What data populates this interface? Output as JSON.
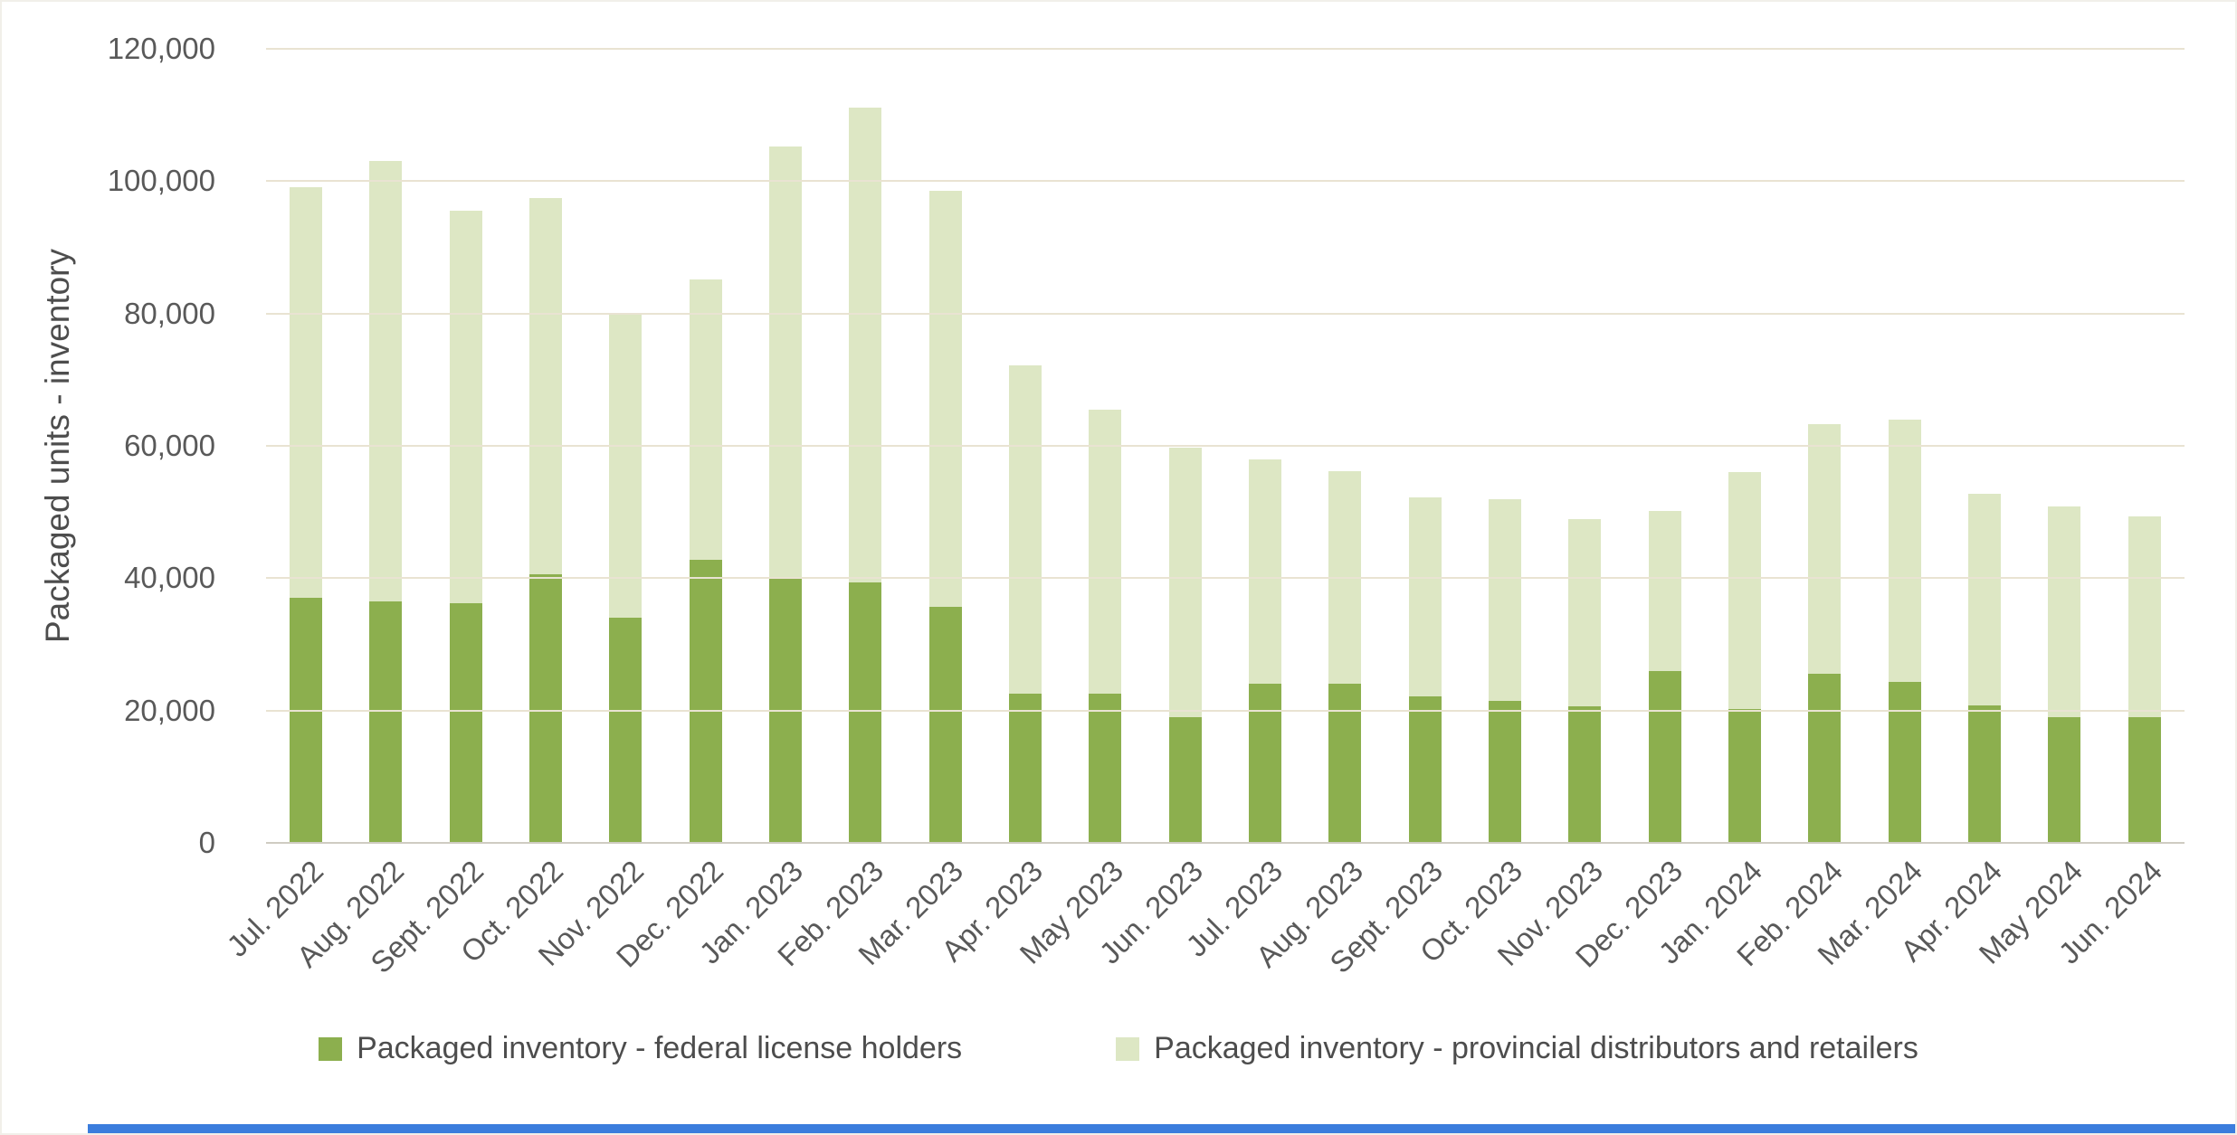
{
  "page": {
    "background": "#ffffff",
    "bottom_strip_color": "#3b7ddd"
  },
  "chart_data": {
    "type": "bar",
    "stacked": true,
    "title": "",
    "xlabel": "",
    "ylabel": "Packaged units - inventory",
    "ylim": [
      0,
      120000
    ],
    "ytick_step": 20000,
    "ytick_labels": [
      "0",
      "20,000",
      "40,000",
      "60,000",
      "80,000",
      "100,000",
      "120,000"
    ],
    "grid": true,
    "grid_color": "#e9e3d2",
    "axis_line_color": "#cfccc2",
    "tick_text_color": "#595959",
    "legend_position": "bottom",
    "categories": [
      "Jul. 2022",
      "Aug. 2022",
      "Sept. 2022",
      "Oct. 2022",
      "Nov. 2022",
      "Dec. 2022",
      "Jan. 2023",
      "Feb. 2023",
      "Mar. 2023",
      "Apr. 2023",
      "May 2023",
      "Jun. 2023",
      "Jul. 2023",
      "Aug. 2023",
      "Sept. 2023",
      "Oct. 2023",
      "Nov. 2023",
      "Dec. 2023",
      "Jan. 2024",
      "Feb. 2024",
      "Mar. 2024",
      "Apr. 2024",
      "May 2024",
      "Jun. 2024"
    ],
    "series": [
      {
        "name": "Packaged inventory - federal license holders",
        "color": "#8caf4e",
        "values": [
          37000,
          36500,
          36200,
          40600,
          34000,
          42800,
          40000,
          39400,
          35700,
          22500,
          22500,
          19000,
          24000,
          24000,
          22200,
          21400,
          20700,
          26000,
          20200,
          25500,
          24300,
          20800,
          19000,
          19000
        ]
      },
      {
        "name": "Packaged inventory - provincial distributors and retailers",
        "color": "#dde7c4",
        "values": [
          62100,
          66600,
          59300,
          56900,
          46000,
          42300,
          65200,
          71700,
          62900,
          49600,
          43000,
          40700,
          34000,
          32200,
          30000,
          30500,
          28300,
          24100,
          35800,
          37800,
          39700,
          31900,
          31900,
          30300
        ]
      }
    ],
    "stacked_totals": [
      99100,
      103100,
      95500,
      97500,
      80000,
      85100,
      105200,
      111100,
      98600,
      72100,
      65500,
      59700,
      58000,
      56200,
      52200,
      51900,
      49000,
      50100,
      56000,
      63300,
      64000,
      52700,
      50900,
      49300
    ]
  }
}
